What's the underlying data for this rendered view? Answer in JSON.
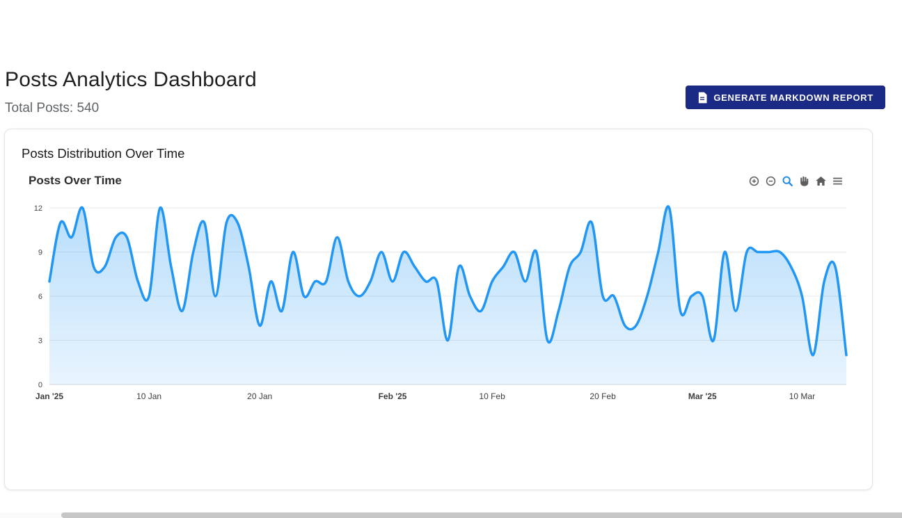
{
  "header": {
    "report_button_label": "GENERATE MARKDOWN REPORT"
  },
  "page": {
    "title": "Posts Analytics Dashboard",
    "total_posts": "Total Posts: 540"
  },
  "card": {
    "heading": "Posts Distribution Over Time"
  },
  "modebar": {
    "tools": [
      "zoom-in",
      "zoom-out",
      "zoom",
      "pan",
      "home",
      "menu"
    ],
    "active_tool": "zoom",
    "active_color": "#1e88e5",
    "icon_color": "#5c5c5c"
  },
  "chart_data": {
    "type": "area",
    "title": "Posts Over Time",
    "xlabel": "",
    "ylabel": "",
    "ylim": [
      0,
      12
    ],
    "yticks": [
      0,
      3,
      6,
      9,
      12
    ],
    "grid": true,
    "legend": "none",
    "smoothing": "spline",
    "line_color": "#2196f3",
    "line_width": 3.5,
    "fill_top": "rgba(33,150,243,0.32)",
    "fill_bottom": "rgba(33,150,243,0.10)",
    "x": [
      "2025-01-01",
      "2025-01-02",
      "2025-01-03",
      "2025-01-04",
      "2025-01-05",
      "2025-01-06",
      "2025-01-07",
      "2025-01-08",
      "2025-01-09",
      "2025-01-10",
      "2025-01-11",
      "2025-01-12",
      "2025-01-13",
      "2025-01-14",
      "2025-01-15",
      "2025-01-16",
      "2025-01-17",
      "2025-01-18",
      "2025-01-19",
      "2025-01-20",
      "2025-01-21",
      "2025-01-22",
      "2025-01-23",
      "2025-01-24",
      "2025-01-25",
      "2025-01-26",
      "2025-01-27",
      "2025-01-28",
      "2025-01-29",
      "2025-01-30",
      "2025-01-31",
      "2025-02-01",
      "2025-02-02",
      "2025-02-03",
      "2025-02-04",
      "2025-02-05",
      "2025-02-06",
      "2025-02-07",
      "2025-02-08",
      "2025-02-09",
      "2025-02-10",
      "2025-02-11",
      "2025-02-12",
      "2025-02-13",
      "2025-02-14",
      "2025-02-15",
      "2025-02-16",
      "2025-02-17",
      "2025-02-18",
      "2025-02-19",
      "2025-02-20",
      "2025-02-21",
      "2025-02-22",
      "2025-02-23",
      "2025-02-24",
      "2025-02-25",
      "2025-02-26",
      "2025-02-27",
      "2025-02-28",
      "2025-03-01",
      "2025-03-02",
      "2025-03-03",
      "2025-03-04",
      "2025-03-05",
      "2025-03-06",
      "2025-03-07",
      "2025-03-08",
      "2025-03-09",
      "2025-03-10",
      "2025-03-11",
      "2025-03-12",
      "2025-03-13",
      "2025-03-14"
    ],
    "values": [
      7,
      11,
      10,
      12,
      8,
      8,
      10,
      10,
      7,
      6,
      12,
      8,
      5,
      9,
      11,
      6,
      11,
      11,
      8,
      4,
      7,
      5,
      9,
      6,
      7,
      7,
      10,
      7,
      6,
      7,
      9,
      7,
      9,
      8,
      7,
      7,
      3,
      8,
      6,
      5,
      7,
      8,
      9,
      7,
      9,
      3,
      5,
      8,
      9,
      11,
      6,
      6,
      4,
      4,
      6,
      9,
      12,
      5,
      6,
      6,
      3,
      9,
      5,
      9,
      9,
      9,
      9,
      8,
      6,
      2,
      7,
      8,
      2
    ],
    "xticks": [
      {
        "index": 0,
        "label": "Jan '25",
        "bold": true
      },
      {
        "index": 9,
        "label": "10 Jan",
        "bold": false
      },
      {
        "index": 19,
        "label": "20 Jan",
        "bold": false
      },
      {
        "index": 31,
        "label": "Feb '25",
        "bold": true
      },
      {
        "index": 40,
        "label": "10 Feb",
        "bold": false
      },
      {
        "index": 50,
        "label": "20 Feb",
        "bold": false
      },
      {
        "index": 59,
        "label": "Mar '25",
        "bold": true
      },
      {
        "index": 68,
        "label": "10 Mar",
        "bold": false
      }
    ]
  }
}
